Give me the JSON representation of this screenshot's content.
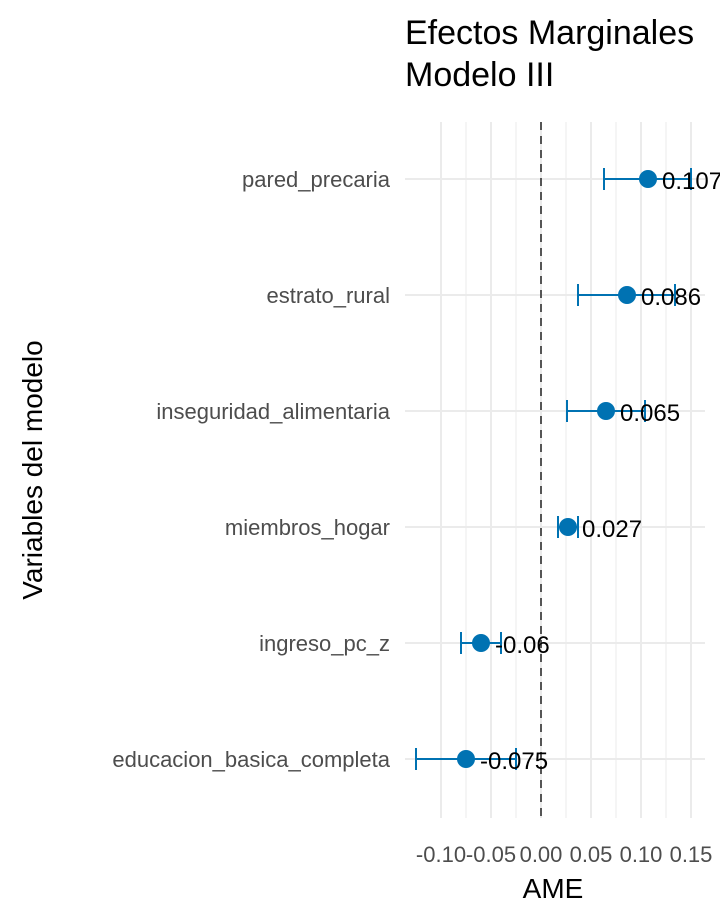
{
  "chart_data": {
    "type": "scatter",
    "title_line1": "Efectos Marginales",
    "title_line2": "Modelo III",
    "xlabel": "AME",
    "ylabel": "Variables del modelo",
    "xlim": [
      -0.125,
      0.165
    ],
    "x_ticks": [
      -0.1,
      -0.05,
      0.0,
      0.05,
      0.1,
      0.15
    ],
    "x_tick_labels": [
      "-0.10",
      "-0.05",
      "0.00",
      "0.05",
      "0.10",
      "0.15"
    ],
    "reference_line": 0,
    "point_color": "#0072B2",
    "categories": [
      "pared_precaria",
      "estrato_rural",
      "inseguridad_alimentaria",
      "miembros_hogar",
      "ingreso_pc_z",
      "educacion_basica_completa"
    ],
    "values": [
      0.107,
      0.086,
      0.065,
      0.027,
      -0.06,
      -0.075
    ],
    "lower": [
      0.063,
      0.037,
      0.026,
      0.017,
      -0.08,
      -0.125
    ],
    "upper": [
      0.15,
      0.134,
      0.104,
      0.037,
      -0.04,
      -0.025
    ],
    "value_labels": [
      "0.107",
      "0.086",
      "0.065",
      "0.027",
      "-0.06",
      "-0.075"
    ]
  }
}
